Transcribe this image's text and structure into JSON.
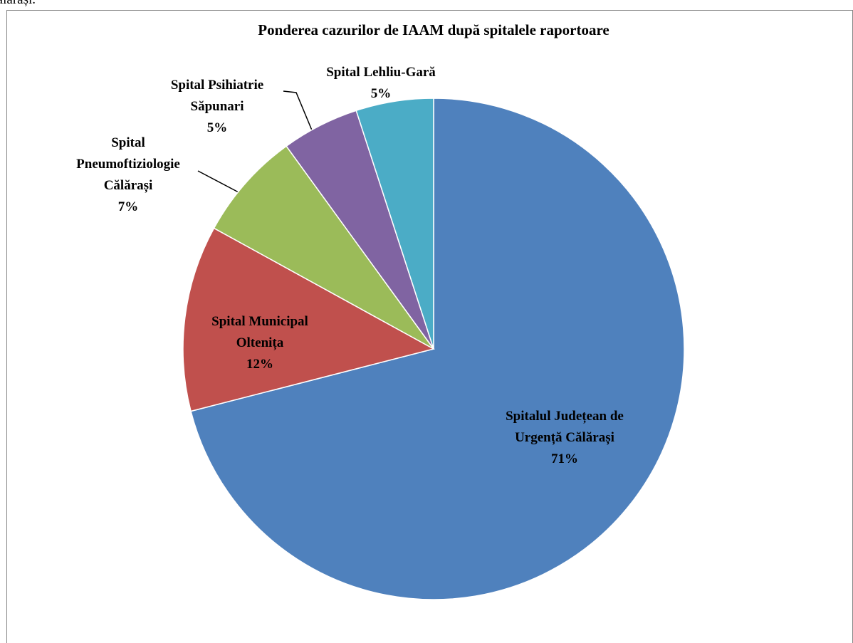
{
  "caption": "Călărași.",
  "chart_data": {
    "type": "pie",
    "title": "Ponderea cazurilor de IAAM după spitalele raportoare",
    "categories": [
      "Spitalul Județean de Urgență Călărași",
      "Spital Municipal Oltenița",
      "Spital Pneumoftiziologie Călărași",
      "Spital Psihiatrie Săpunari",
      "Spital Lehliu-Gară"
    ],
    "values": [
      71,
      12,
      7,
      5,
      5
    ],
    "value_labels": [
      "71%",
      "12%",
      "7%",
      "5%",
      "5%"
    ],
    "colors": [
      "#4f81bd",
      "#c0504d",
      "#9bbb59",
      "#8064a2",
      "#4bacc6"
    ]
  }
}
